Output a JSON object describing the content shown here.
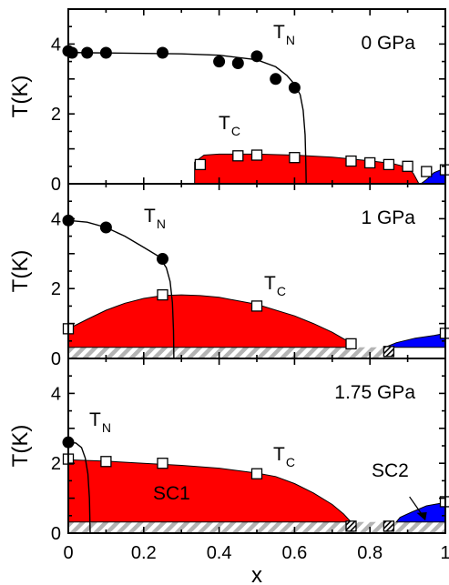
{
  "chart_data": [
    {
      "type": "scatter",
      "xlim": [
        0,
        1
      ],
      "ylim": [
        0,
        5
      ],
      "ylabel": "T(K)",
      "pressure_label": "0 GPa",
      "yticks": [
        "0",
        "2",
        "4"
      ],
      "colors": {
        "sc": "#ff0000",
        "sc2": "#0000ff",
        "hatch": "#b4b4b4"
      },
      "series": [
        {
          "name": "T_N",
          "label_main": "T",
          "label_sub": "N",
          "marker": "filled-circle",
          "x": [
            0,
            0.01,
            0.05,
            0.1,
            0.25,
            0.4,
            0.45,
            0.5,
            0.55,
            0.6
          ],
          "y": [
            3.8,
            3.75,
            3.75,
            3.75,
            3.75,
            3.5,
            3.45,
            3.65,
            3.0,
            2.75
          ]
        },
        {
          "name": "T_C",
          "label_main": "T",
          "label_sub": "C",
          "marker": "open-square",
          "x": [
            0.35,
            0.45,
            0.5,
            0.6,
            0.75,
            0.8,
            0.85,
            0.9,
            0.95,
            1.0
          ],
          "y": [
            0.55,
            0.8,
            0.82,
            0.75,
            0.65,
            0.6,
            0.55,
            0.5,
            0.35,
            0.4
          ]
        }
      ]
    },
    {
      "type": "scatter",
      "xlim": [
        0,
        1
      ],
      "ylim": [
        0,
        5
      ],
      "ylabel": "T(K)",
      "pressure_label": "1 GPa",
      "yticks": [
        "0",
        "2",
        "4"
      ],
      "colors": {
        "sc": "#ff0000",
        "sc2": "#0000ff",
        "hatch": "#b4b4b4"
      },
      "series": [
        {
          "name": "T_N",
          "label_main": "T",
          "label_sub": "N",
          "marker": "filled-circle",
          "x": [
            0,
            0.1,
            0.25
          ],
          "y": [
            3.95,
            3.75,
            2.85
          ]
        },
        {
          "name": "T_C",
          "label_main": "T",
          "label_sub": "C",
          "marker": "open-square",
          "x": [
            0,
            0.25,
            0.5,
            0.75,
            1.0
          ],
          "y": [
            0.85,
            1.82,
            1.5,
            0.42,
            0.72
          ]
        },
        {
          "name": "hatched",
          "marker": "hatched-square",
          "x": [
            0.85
          ],
          "y": [
            0.2
          ]
        }
      ]
    },
    {
      "type": "scatter",
      "xlim": [
        0,
        1
      ],
      "ylim": [
        0,
        5
      ],
      "ylabel": "T(K)",
      "xlabel": "x",
      "pressure_label": "1.75 GPa",
      "yticks": [
        "0",
        "2",
        "4"
      ],
      "xticks": [
        "0",
        "0.2",
        "0.4",
        "0.6",
        "0.8",
        "1"
      ],
      "region_labels": [
        "SC1",
        "SC2"
      ],
      "colors": {
        "sc": "#ff0000",
        "sc2": "#0000ff",
        "hatch": "#b4b4b4"
      },
      "series": [
        {
          "name": "T_N",
          "label_main": "T",
          "label_sub": "N",
          "marker": "filled-circle",
          "x": [
            0
          ],
          "y": [
            2.6
          ]
        },
        {
          "name": "T_C",
          "label_main": "T",
          "label_sub": "C",
          "marker": "open-square",
          "x": [
            0,
            0.1,
            0.25,
            0.5,
            1.0
          ],
          "y": [
            2.12,
            2.05,
            2.0,
            1.7,
            0.9
          ]
        },
        {
          "name": "hatched",
          "marker": "hatched-square",
          "x": [
            0.75,
            0.85
          ],
          "y": [
            0.2,
            0.2
          ]
        }
      ]
    }
  ]
}
